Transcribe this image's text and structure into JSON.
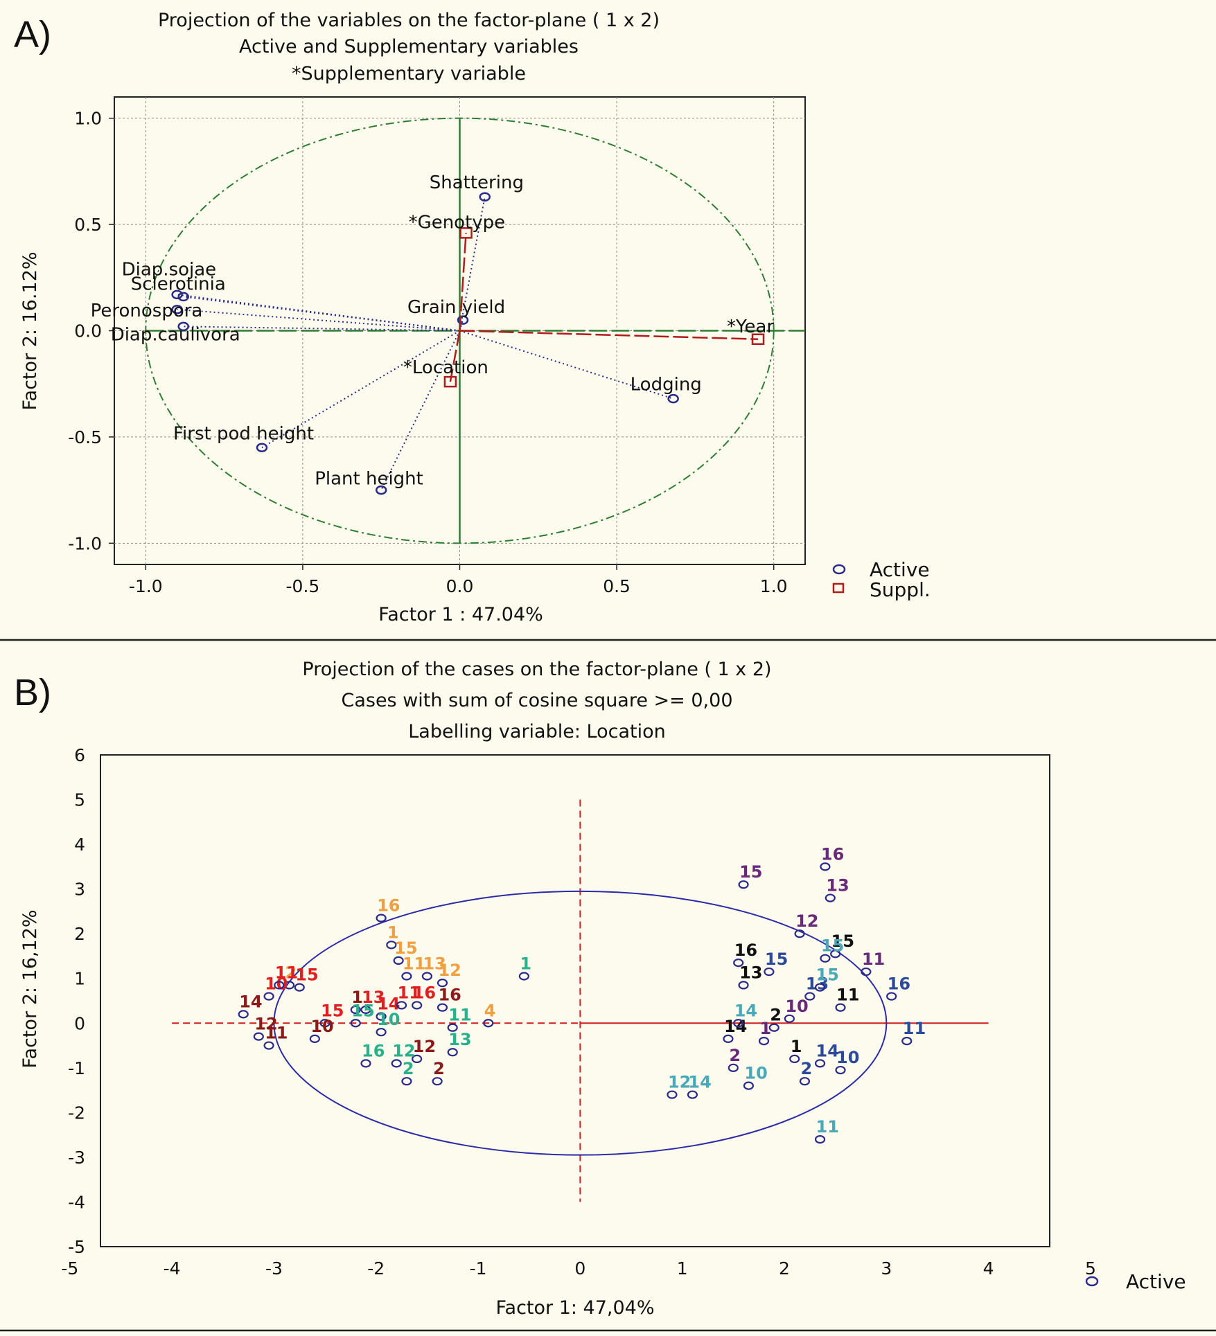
{
  "panel_a": {
    "label": "A)",
    "title_lines": [
      "Projection of the variables on the factor-plane (  1 x   2)",
      "Active and Supplementary variables",
      "*Supplementary variable"
    ],
    "legend": {
      "active": "Active",
      "suppl": "Suppl."
    }
  },
  "panel_b": {
    "label": "B)",
    "title_lines": [
      "Projection of the cases on the factor-plane (  1 x   2)",
      "Cases with sum of cosine square >=  0,00",
      "Labelling variable: Location"
    ],
    "legend": {
      "active": "Active"
    }
  },
  "colors": {
    "active": "#2a2a8c",
    "suppl": "#b01c1c",
    "circle_a": "#2e7d32",
    "axis_a": "#2e7d32",
    "circle_b": "#2b2ba8",
    "axis_b": "#d11d1d",
    "grid": "#8a8a8a"
  },
  "chart_data": [
    {
      "type": "scatter",
      "title": "Projection of the variables on the factor-plane (  1 x   2)",
      "subtitle": [
        "Active and Supplementary variables",
        "*Supplementary variable"
      ],
      "xlabel": "Factor 1 : 47.04%",
      "ylabel": "Factor 2: 16.12%",
      "xlim": [
        -1.1,
        1.1
      ],
      "ylim": [
        -1.1,
        1.1
      ],
      "xticks": [
        -1.0,
        -0.5,
        0.0,
        0.5,
        1.0
      ],
      "xtick_labels": [
        "-1.0",
        "-0.5",
        "0.0",
        "0.5",
        "1.0"
      ],
      "yticks": [
        -1.0,
        -0.5,
        0.0,
        0.5,
        1.0
      ],
      "ytick_labels": [
        "-1.0",
        "-0.5",
        "0.0",
        "0.5",
        "1.0"
      ],
      "grid": true,
      "unit_circle": true,
      "legend": [
        "Active",
        "Suppl."
      ],
      "series": [
        {
          "name": "Active",
          "marker": "circle",
          "line": "dotted",
          "points": [
            {
              "label": "Shattering",
              "x": 0.08,
              "y": 0.63
            },
            {
              "label": "Diap.sojae",
              "x": -0.9,
              "y": 0.17
            },
            {
              "label": "Sclerotinia",
              "x": -0.88,
              "y": 0.16
            },
            {
              "label": "Peronospora",
              "x": -0.9,
              "y": 0.1
            },
            {
              "label": "Diap.caulivora",
              "x": -0.88,
              "y": 0.02
            },
            {
              "label": "Grain yield",
              "x": 0.01,
              "y": 0.05
            },
            {
              "label": "Lodging",
              "x": 0.68,
              "y": -0.32
            },
            {
              "label": "First pod height",
              "x": -0.63,
              "y": -0.55
            },
            {
              "label": "Plant height",
              "x": -0.25,
              "y": -0.75
            }
          ]
        },
        {
          "name": "Suppl.",
          "marker": "square",
          "line": "dashed",
          "points": [
            {
              "label": "*Genotype",
              "x": 0.02,
              "y": 0.46
            },
            {
              "label": "*Year",
              "x": 0.95,
              "y": -0.04
            },
            {
              "label": "*Location",
              "x": -0.03,
              "y": -0.24
            }
          ]
        }
      ]
    },
    {
      "type": "scatter",
      "title": "Projection of the cases on the factor-plane (  1 x   2)",
      "subtitle": [
        "Cases with sum of cosine square >=  0,00",
        "Labelling variable: Location"
      ],
      "xlabel": "Factor 1: 47,04%",
      "ylabel": "Factor 2: 16,12%",
      "xlim": [
        -5,
        5
      ],
      "ylim": [
        -5,
        6
      ],
      "xticks": [
        -5,
        -4,
        -3,
        -2,
        -1,
        0,
        1,
        2,
        3,
        4,
        5
      ],
      "yticks": [
        -5,
        -4,
        -3,
        -2,
        -1,
        0,
        1,
        2,
        3,
        4,
        5,
        6
      ],
      "grid": false,
      "ellipse": {
        "rx": 3.0,
        "ry": 2.95
      },
      "legend": [
        "Active"
      ],
      "points": [
        {
          "x": -1.95,
          "y": 2.35,
          "label": "16",
          "color": "#f0a040"
        },
        {
          "x": -1.85,
          "y": 1.75,
          "label": "1",
          "color": "#f0a040"
        },
        {
          "x": -1.78,
          "y": 1.4,
          "label": "15",
          "color": "#f0a040"
        },
        {
          "x": -1.7,
          "y": 1.05,
          "label": "11",
          "color": "#f0a040"
        },
        {
          "x": -1.5,
          "y": 1.05,
          "label": "13",
          "color": "#f0a040"
        },
        {
          "x": -1.35,
          "y": 0.9,
          "label": "12",
          "color": "#f0a040"
        },
        {
          "x": -2.85,
          "y": 0.85,
          "label": "2",
          "color": "#f0a040"
        },
        {
          "x": -0.9,
          "y": 0.0,
          "label": "4",
          "color": "#f0a040"
        },
        {
          "x": -3.05,
          "y": 0.6,
          "label": "10",
          "color": "#e02020"
        },
        {
          "x": -2.95,
          "y": 0.85,
          "label": "11",
          "color": "#e02020"
        },
        {
          "x": -2.75,
          "y": 0.8,
          "label": "15",
          "color": "#e02020"
        },
        {
          "x": -2.1,
          "y": 0.3,
          "label": "13",
          "color": "#e02020"
        },
        {
          "x": -1.95,
          "y": 0.15,
          "label": "14",
          "color": "#e02020"
        },
        {
          "x": -1.75,
          "y": 0.4,
          "label": "11",
          "color": "#e02020"
        },
        {
          "x": -1.6,
          "y": 0.4,
          "label": "16",
          "color": "#e02020"
        },
        {
          "x": -2.5,
          "y": 0.0,
          "label": "15",
          "color": "#e02020"
        },
        {
          "x": -3.3,
          "y": 0.2,
          "label": "14",
          "color": "#8b1a1a"
        },
        {
          "x": -3.15,
          "y": -0.3,
          "label": "12",
          "color": "#8b1a1a"
        },
        {
          "x": -3.05,
          "y": -0.5,
          "label": "11",
          "color": "#8b1a1a"
        },
        {
          "x": -2.6,
          "y": -0.35,
          "label": "10",
          "color": "#8b1a1a"
        },
        {
          "x": -2.2,
          "y": 0.3,
          "label": "1",
          "color": "#8b1a1a"
        },
        {
          "x": -1.35,
          "y": 0.35,
          "label": "16",
          "color": "#8b1a1a"
        },
        {
          "x": -1.6,
          "y": -0.8,
          "label": "12",
          "color": "#8b1a1a"
        },
        {
          "x": -1.4,
          "y": -1.3,
          "label": "2",
          "color": "#8b1a1a"
        },
        {
          "x": -2.2,
          "y": 0.0,
          "label": "15",
          "color": "#2ab08c"
        },
        {
          "x": -1.95,
          "y": -0.2,
          "label": "10",
          "color": "#2ab08c"
        },
        {
          "x": -1.25,
          "y": -0.1,
          "label": "11",
          "color": "#2ab08c"
        },
        {
          "x": -2.1,
          "y": -0.9,
          "label": "16",
          "color": "#2ab08c"
        },
        {
          "x": -1.8,
          "y": -0.9,
          "label": "12",
          "color": "#2ab08c"
        },
        {
          "x": -1.7,
          "y": -1.3,
          "label": "2",
          "color": "#2ab08c"
        },
        {
          "x": -1.25,
          "y": -0.65,
          "label": "13",
          "color": "#2ab08c"
        },
        {
          "x": -0.55,
          "y": 1.05,
          "label": "1",
          "color": "#2ab08c"
        },
        {
          "x": 1.6,
          "y": 3.1,
          "label": "15",
          "color": "#6a2a7a"
        },
        {
          "x": 2.4,
          "y": 3.5,
          "label": "16",
          "color": "#6a2a7a"
        },
        {
          "x": 2.45,
          "y": 2.8,
          "label": "13",
          "color": "#6a2a7a"
        },
        {
          "x": 2.15,
          "y": 2.0,
          "label": "12",
          "color": "#6a2a7a"
        },
        {
          "x": 2.8,
          "y": 1.15,
          "label": "11",
          "color": "#6a2a7a"
        },
        {
          "x": 2.05,
          "y": 0.1,
          "label": "10",
          "color": "#6a2a7a"
        },
        {
          "x": 1.8,
          "y": -0.4,
          "label": "1",
          "color": "#6a2a7a"
        },
        {
          "x": 1.5,
          "y": -1.0,
          "label": "2",
          "color": "#6a2a7a"
        },
        {
          "x": 1.55,
          "y": 1.35,
          "label": "16",
          "color": "#111111"
        },
        {
          "x": 1.6,
          "y": 0.85,
          "label": "13",
          "color": "#111111"
        },
        {
          "x": 2.5,
          "y": 1.55,
          "label": "15",
          "color": "#111111"
        },
        {
          "x": 2.55,
          "y": 0.35,
          "label": "11",
          "color": "#111111"
        },
        {
          "x": 1.9,
          "y": -0.1,
          "label": "2",
          "color": "#111111"
        },
        {
          "x": 1.45,
          "y": -0.35,
          "label": "14",
          "color": "#111111"
        },
        {
          "x": 2.1,
          "y": -0.8,
          "label": "1",
          "color": "#111111"
        },
        {
          "x": 1.85,
          "y": 1.15,
          "label": "15",
          "color": "#2b4a9a"
        },
        {
          "x": 2.25,
          "y": 0.6,
          "label": "13",
          "color": "#2b4a9a"
        },
        {
          "x": 3.05,
          "y": 0.6,
          "label": "16",
          "color": "#2b4a9a"
        },
        {
          "x": 3.2,
          "y": -0.4,
          "label": "11",
          "color": "#2b4a9a"
        },
        {
          "x": 2.35,
          "y": -0.9,
          "label": "14",
          "color": "#2b4a9a"
        },
        {
          "x": 2.55,
          "y": -1.05,
          "label": "10",
          "color": "#2b4a9a"
        },
        {
          "x": 2.2,
          "y": -1.3,
          "label": "2",
          "color": "#2b4a9a"
        },
        {
          "x": 1.55,
          "y": 0.0,
          "label": "14",
          "color": "#4aa8b8"
        },
        {
          "x": 2.4,
          "y": 1.45,
          "label": "15",
          "color": "#4aa8b8"
        },
        {
          "x": 2.35,
          "y": 0.8,
          "label": "15",
          "color": "#4aa8b8"
        },
        {
          "x": 1.65,
          "y": -1.4,
          "label": "10",
          "color": "#4aa8b8"
        },
        {
          "x": 0.9,
          "y": -1.6,
          "label": "12",
          "color": "#4aa8b8"
        },
        {
          "x": 1.1,
          "y": -1.6,
          "label": "14",
          "color": "#4aa8b8"
        },
        {
          "x": 2.35,
          "y": -2.6,
          "label": "11",
          "color": "#4aa8b8"
        }
      ]
    }
  ]
}
